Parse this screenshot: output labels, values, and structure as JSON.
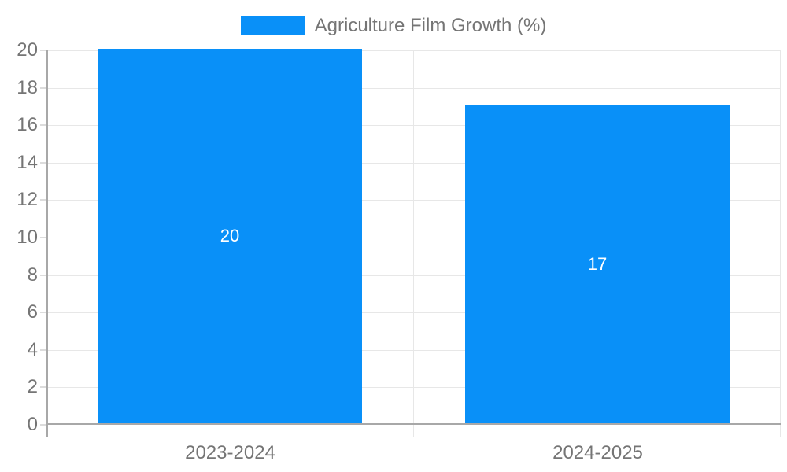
{
  "legend": {
    "label": "Agriculture Film Growth (%)"
  },
  "chart_data": {
    "type": "bar",
    "title": "Agriculture Film Growth (%)",
    "categories": [
      "2023-2024",
      "2024-2025"
    ],
    "values": [
      20,
      17
    ],
    "data_labels": [
      "20",
      "17"
    ],
    "xlabel": "",
    "ylabel": "",
    "ylim": [
      0,
      20
    ],
    "ytick_step": 2,
    "grid": true,
    "legend_position": "top",
    "colors": {
      "bar": "#0990f8",
      "bar_label_text": "#ffffff",
      "axis_text": "#757575",
      "gridline": "#e7e7e7",
      "tick": "#dcdcdc",
      "axis_line": "#a8a8a8",
      "background": "#ffffff"
    }
  }
}
